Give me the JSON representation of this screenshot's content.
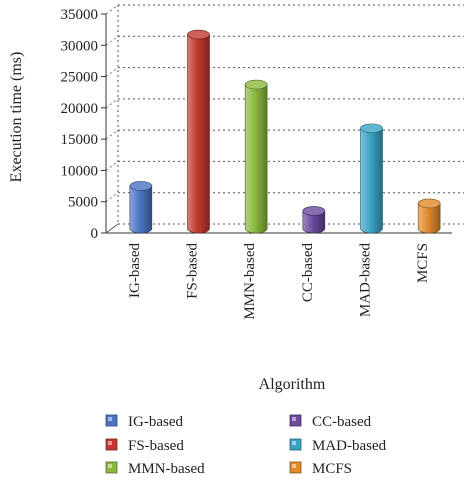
{
  "chart_data": {
    "type": "bar",
    "title": "",
    "xlabel": "Algorithm",
    "ylabel": "Execution time (ms)",
    "ylim": [
      0,
      35000
    ],
    "yticks": [
      "0",
      "5000",
      "10000",
      "15000",
      "20000",
      "25000",
      "30000",
      "35000"
    ],
    "categories": [
      "IG-based",
      "FS-based",
      "MMN-based",
      "CC-based",
      "MAD-based",
      "MCFS"
    ],
    "values": [
      6800,
      31000,
      23000,
      2800,
      16000,
      4000
    ],
    "colors": [
      "#4a74c4",
      "#c0392f",
      "#8cb83d",
      "#6a4a9c",
      "#3aa3c4",
      "#e08a2c"
    ],
    "grid": true,
    "style": "3d-cylinder",
    "legend": {
      "placement": "bottom",
      "items": [
        "IG-based",
        "FS-based",
        "MMN-based",
        "CC-based",
        "MAD-based",
        "MCFS"
      ]
    }
  }
}
